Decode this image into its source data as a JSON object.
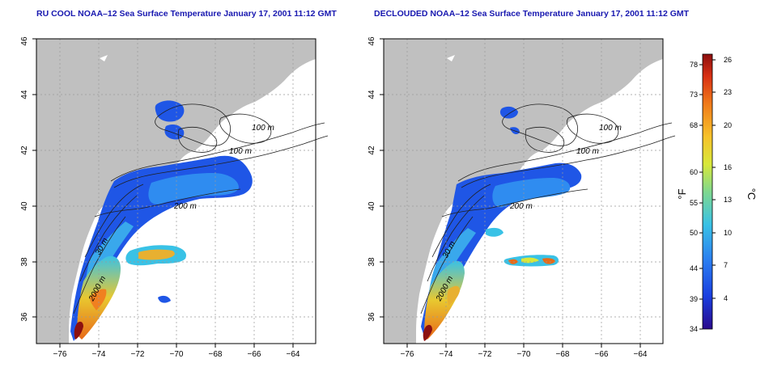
{
  "panels": [
    {
      "title": "RU COOL NOAA–12 Sea Surface Temperature January 17, 2001 11:12 GMT"
    },
    {
      "title": "DECLOUDED NOAA–12 Sea Surface Temperature January 17, 2001 11:12 GMT"
    }
  ],
  "axes": {
    "x_ticks": [
      "−76",
      "−74",
      "−72",
      "−70",
      "−68",
      "−66",
      "−64"
    ],
    "y_ticks": [
      "36",
      "38",
      "40",
      "42",
      "44",
      "46"
    ],
    "lon_range": [
      -77.2,
      -62.8
    ],
    "lat_range": [
      35.0,
      46.0
    ]
  },
  "contour_labels": [
    "100 m",
    "100 m",
    "200 m",
    "2000 m",
    "30 m"
  ],
  "colorbar": {
    "fahrenheit_label": "°F",
    "celsius_label": "°C",
    "fahrenheit_ticks": [
      "78",
      "73",
      "68",
      "60",
      "55",
      "50",
      "44",
      "39",
      "34"
    ],
    "celsius_ticks": [
      "26",
      "23",
      "20",
      "16",
      "13",
      "10",
      "7",
      "4"
    ],
    "colors": [
      "#2a0a8c",
      "#1a3fe0",
      "#2b7ef0",
      "#39c2e6",
      "#7fd88e",
      "#d8e83a",
      "#f7c22a",
      "#f07a1a",
      "#d83014",
      "#8c0e0e"
    ]
  },
  "colors": {
    "land": "#c0c0c0",
    "title": "#1818b0"
  }
}
